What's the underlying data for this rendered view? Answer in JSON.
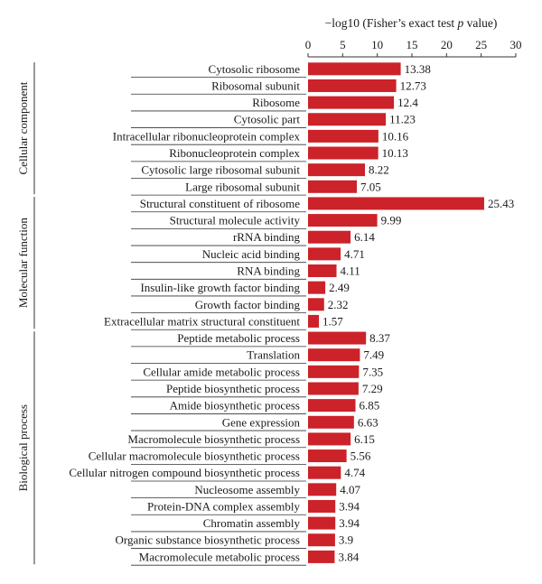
{
  "chart_data": {
    "type": "bar",
    "orientation": "horizontal",
    "xlabel_prefix": "−log10 (Fisher’s exact test ",
    "xlabel_italic": "p",
    "xlabel_suffix": " value)",
    "xlim": [
      0,
      30
    ],
    "xticks": [
      0,
      5,
      10,
      15,
      20,
      25,
      30
    ],
    "bar_color": "#cc2229",
    "groups": [
      {
        "name": "Cellular component",
        "items": [
          {
            "label": "Cytosolic ribosome",
            "value": 13.38
          },
          {
            "label": "Ribosomal subunit",
            "value": 12.73
          },
          {
            "label": "Ribosome",
            "value": 12.4
          },
          {
            "label": "Cytosolic part",
            "value": 11.23
          },
          {
            "label": "Intracellular ribonucleoprotein complex",
            "value": 10.16
          },
          {
            "label": "Ribonucleoprotein complex",
            "value": 10.13
          },
          {
            "label": "Cytosolic large ribosomal subunit",
            "value": 8.22
          },
          {
            "label": "Large ribosomal subunit",
            "value": 7.05
          }
        ]
      },
      {
        "name": "Molecular function",
        "items": [
          {
            "label": "Structural constituent of ribosome",
            "value": 25.43
          },
          {
            "label": "Structural molecule activity",
            "value": 9.99
          },
          {
            "label": "rRNA binding",
            "value": 6.14
          },
          {
            "label": "Nucleic acid binding",
            "value": 4.71
          },
          {
            "label": "RNA binding",
            "value": 4.11
          },
          {
            "label": "Insulin-like growth factor binding",
            "value": 2.49
          },
          {
            "label": "Growth factor binding",
            "value": 2.32
          },
          {
            "label": "Extracellular matrix structural constituent",
            "value": 1.57
          }
        ]
      },
      {
        "name": "Biological process",
        "items": [
          {
            "label": "Peptide metabolic process",
            "value": 8.37
          },
          {
            "label": "Translation",
            "value": 7.49
          },
          {
            "label": "Cellular amide metabolic process",
            "value": 7.35
          },
          {
            "label": "Peptide biosynthetic process",
            "value": 7.29
          },
          {
            "label": "Amide biosynthetic process",
            "value": 6.85
          },
          {
            "label": "Gene expression",
            "value": 6.63
          },
          {
            "label": "Macromolecule biosynthetic process",
            "value": 6.15
          },
          {
            "label": "Cellular macromolecule biosynthetic process",
            "value": 5.56
          },
          {
            "label": "Cellular nitrogen compound biosynthetic process",
            "value": 4.74
          },
          {
            "label": "Nucleosome assembly",
            "value": 4.07
          },
          {
            "label": "Protein-DNA complex assembly",
            "value": 3.94
          },
          {
            "label": "Chromatin assembly",
            "value": 3.94
          },
          {
            "label": "Organic substance biosynthetic process",
            "value": 3.9
          },
          {
            "label": "Macromolecule metabolic process",
            "value": 3.84
          }
        ]
      }
    ]
  }
}
